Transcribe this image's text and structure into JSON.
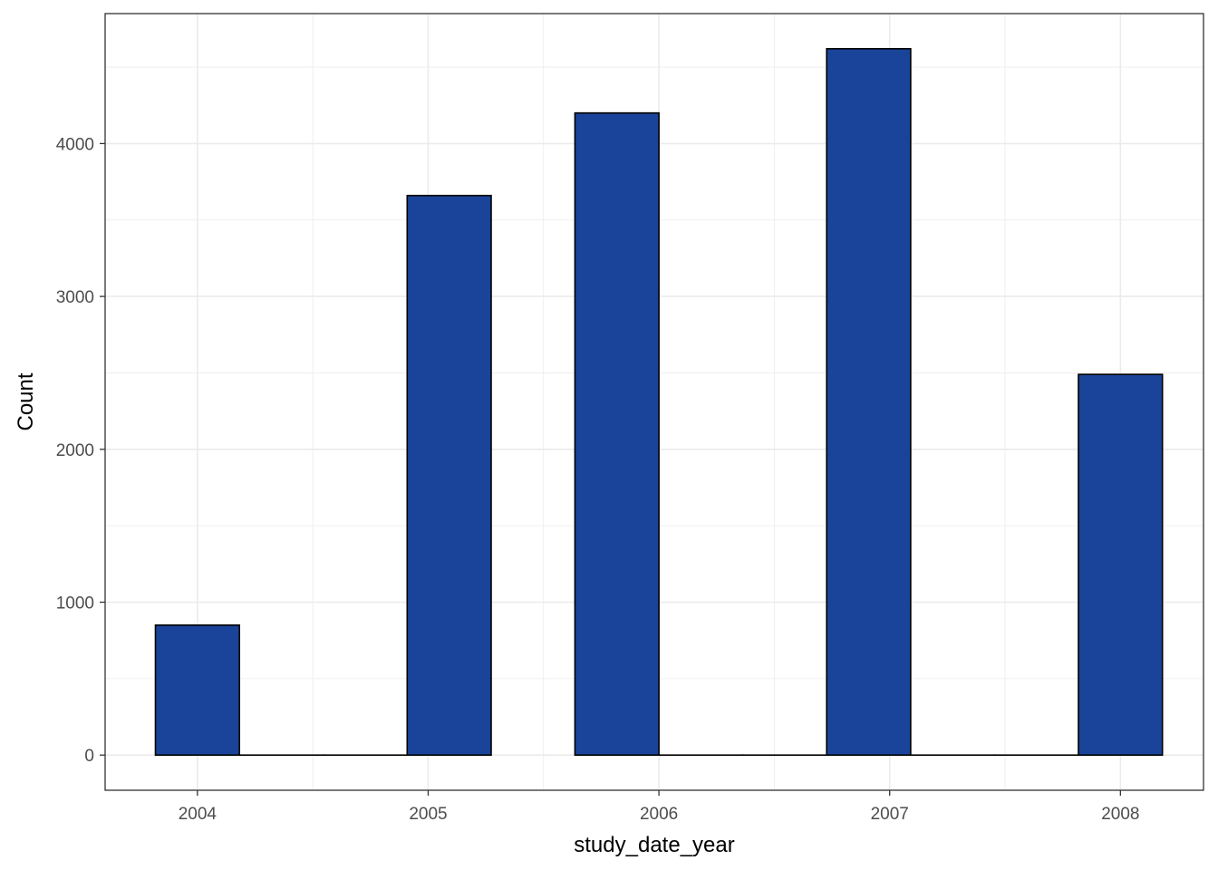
{
  "chart_data": {
    "type": "bar",
    "title": "",
    "xlabel": "study_date_year",
    "ylabel": "Count",
    "bins": [
      {
        "x_start": 2003.818,
        "x_end": 2004.182,
        "value": 850
      },
      {
        "x_start": 2004.182,
        "x_end": 2004.545,
        "value": 0
      },
      {
        "x_start": 2004.545,
        "x_end": 2004.909,
        "value": 0
      },
      {
        "x_start": 2004.909,
        "x_end": 2005.273,
        "value": 3660
      },
      {
        "x_start": 2005.636,
        "x_end": 2006.0,
        "value": 4200
      },
      {
        "x_start": 2006.0,
        "x_end": 2006.364,
        "value": 0
      },
      {
        "x_start": 2006.364,
        "x_end": 2006.727,
        "value": 0
      },
      {
        "x_start": 2006.727,
        "x_end": 2007.091,
        "value": 4620
      },
      {
        "x_start": 2007.091,
        "x_end": 2007.455,
        "value": 0
      },
      {
        "x_start": 2007.455,
        "x_end": 2007.818,
        "value": 0
      },
      {
        "x_start": 2007.818,
        "x_end": 2008.182,
        "value": 2490
      }
    ],
    "xlim": [
      2003.6,
      2008.36
    ],
    "ylim": [
      -230,
      4850
    ],
    "x_ticks": [
      "2004",
      "2005",
      "2006",
      "2007",
      "2008"
    ],
    "y_ticks": [
      "0",
      "1000",
      "2000",
      "3000",
      "4000"
    ],
    "grid": true,
    "legend": "none",
    "bar_fill": "#1A4499",
    "bar_outline": "#000000",
    "grid_color": "#EBEBEB",
    "panel_border": "#333333"
  }
}
